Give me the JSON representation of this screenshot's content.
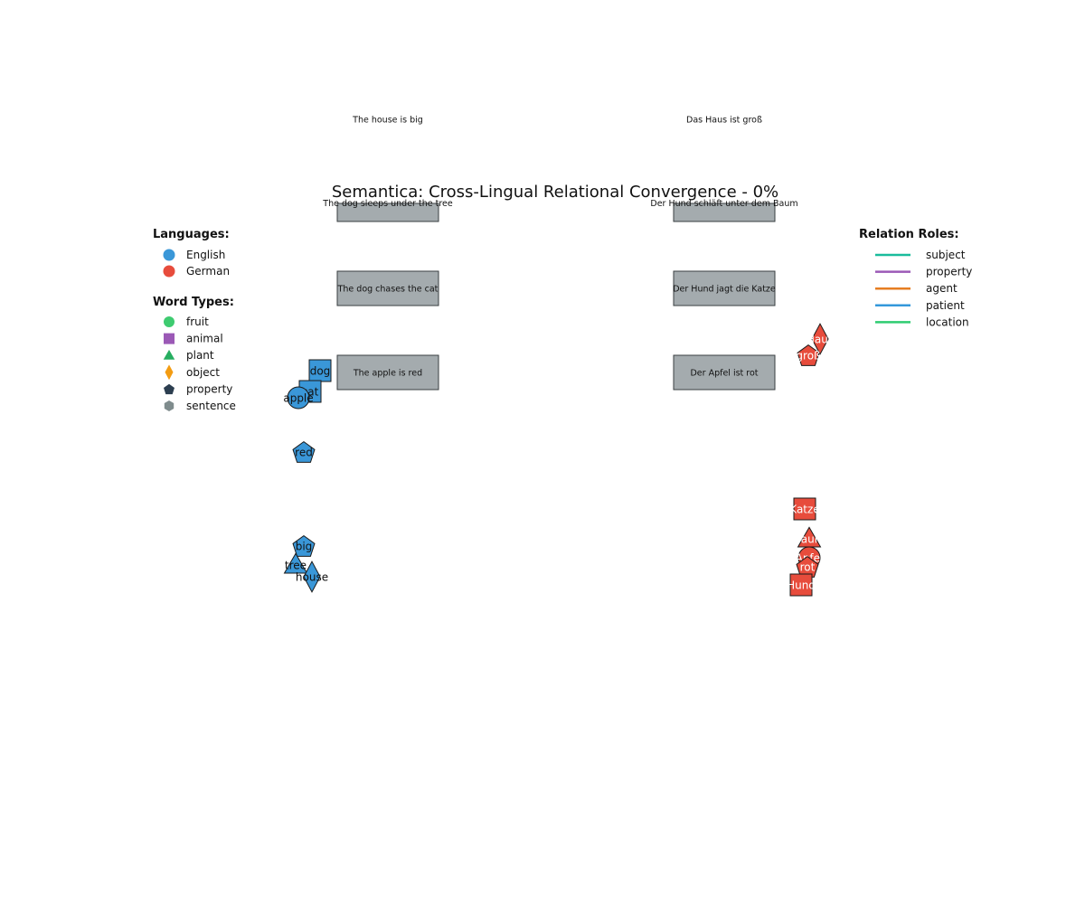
{
  "title": "Semantica: Cross-Lingual Relational Convergence - 0%",
  "colors": {
    "english": "#3a97d8",
    "german": "#e74c3c",
    "sentence_box": "#a4abae",
    "outline": "#1a1a1a",
    "legend_fruit": "#3ecb70",
    "legend_animal": "#9b59b6",
    "legend_plant": "#27ae60",
    "legend_object": "#f39c12",
    "legend_property": "#2c3e50",
    "legend_sentence": "#7f8c8d"
  },
  "legends": {
    "languages": {
      "heading": "Languages:",
      "items": [
        {
          "label": "English",
          "color": "#3a97d8"
        },
        {
          "label": "German",
          "color": "#e74c3c"
        }
      ]
    },
    "word_types": {
      "heading": "Word Types:",
      "items": [
        {
          "label": "fruit",
          "shape": "circle",
          "color": "#3ecb70"
        },
        {
          "label": "animal",
          "shape": "square",
          "color": "#9b59b6"
        },
        {
          "label": "plant",
          "shape": "triangle",
          "color": "#27ae60"
        },
        {
          "label": "object",
          "shape": "diamond",
          "color": "#f39c12"
        },
        {
          "label": "property",
          "shape": "pentagon",
          "color": "#2c3e50"
        },
        {
          "label": "sentence",
          "shape": "hexagon",
          "color": "#7f8c8d"
        }
      ]
    },
    "relation_roles": {
      "heading": "Relation Roles:",
      "items": [
        {
          "label": "subject",
          "color": "#1abc9c"
        },
        {
          "label": "property",
          "color": "#9b59b6"
        },
        {
          "label": "agent",
          "color": "#e67e22"
        },
        {
          "label": "patient",
          "color": "#3498db"
        },
        {
          "label": "location",
          "color": "#2ecc71"
        }
      ]
    }
  },
  "sentences": {
    "english": [
      {
        "text": "The house is big",
        "style": "label-only"
      },
      {
        "text": "The dog sleeps under the tree",
        "style": "small-box"
      },
      {
        "text": "The dog chases the cat",
        "style": "box"
      },
      {
        "text": "The apple is red",
        "style": "box"
      }
    ],
    "german": [
      {
        "text": "Das Haus ist groß",
        "style": "label-only"
      },
      {
        "text": "Der Hund schläft unter dem Baum",
        "style": "small-box"
      },
      {
        "text": "Der Hund jagt die Katze",
        "style": "box"
      },
      {
        "text": "Der Apfel ist rot",
        "style": "box"
      }
    ]
  },
  "words": {
    "english": [
      {
        "label": "dog",
        "type": "animal",
        "shape": "square"
      },
      {
        "label": "cat",
        "type": "animal",
        "shape": "square"
      },
      {
        "label": "apple",
        "type": "fruit",
        "shape": "circle"
      },
      {
        "label": "red",
        "type": "property",
        "shape": "pentagon"
      },
      {
        "label": "big",
        "type": "property",
        "shape": "pentagon"
      },
      {
        "label": "tree",
        "type": "plant",
        "shape": "triangle"
      },
      {
        "label": "house",
        "type": "object",
        "shape": "diamond"
      }
    ],
    "german": [
      {
        "label": "Haus",
        "type": "object",
        "shape": "diamond"
      },
      {
        "label": "groß",
        "type": "property",
        "shape": "pentagon"
      },
      {
        "label": "Katze",
        "type": "animal",
        "shape": "square"
      },
      {
        "label": "Baum",
        "type": "plant",
        "shape": "triangle"
      },
      {
        "label": "Apfel",
        "type": "fruit",
        "shape": "circle"
      },
      {
        "label": "rot",
        "type": "property",
        "shape": "pentagon"
      },
      {
        "label": "Hund",
        "type": "animal",
        "shape": "square"
      }
    ]
  }
}
